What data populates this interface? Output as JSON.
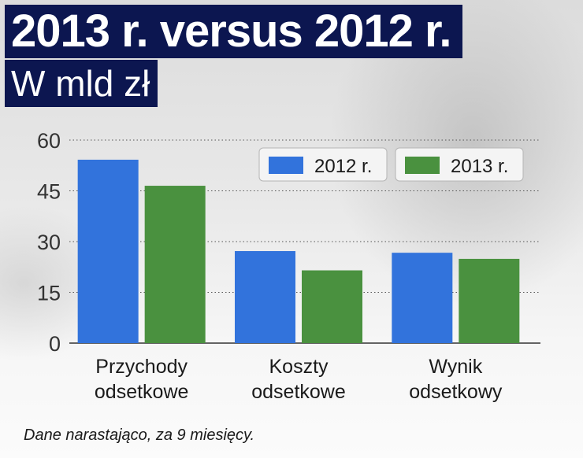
{
  "header": {
    "title": "2013 r. versus 2012 r.",
    "subtitle": "W mld zł"
  },
  "footnote": "Dane narastająco,  za 9 miesięcy.",
  "colors": {
    "series_2012": "#3273dc",
    "series_2013": "#4a913f",
    "title_bg": "#0c1650"
  },
  "chart_data": {
    "type": "bar",
    "title": "2013 r. versus 2012 r.",
    "subtitle": "W mld zł",
    "categories": [
      [
        "Przychody",
        "odsetkowe"
      ],
      [
        "Koszty",
        "odsetkowe"
      ],
      [
        "Wynik",
        "odsetkowy"
      ]
    ],
    "series": [
      {
        "name": "2012 r.",
        "values": [
          54.2,
          27.2,
          26.7
        ]
      },
      {
        "name": "2013 r.",
        "values": [
          46.5,
          21.5,
          24.9
        ]
      }
    ],
    "yticks": [
      "0",
      "15",
      "30",
      "45",
      "60"
    ],
    "ylim": [
      0,
      60
    ],
    "grid": true,
    "legend": "top-right"
  }
}
